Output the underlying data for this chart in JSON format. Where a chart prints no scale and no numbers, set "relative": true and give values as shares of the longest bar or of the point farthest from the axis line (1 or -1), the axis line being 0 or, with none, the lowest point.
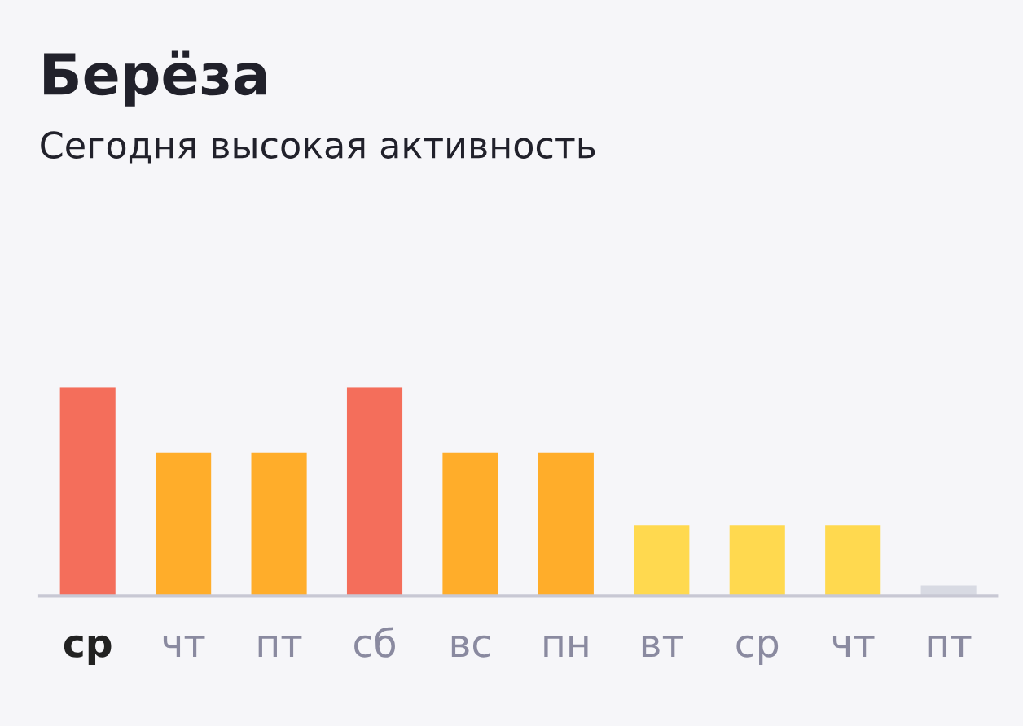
{
  "chart_data": {
    "type": "bar",
    "relative": true,
    "title": "Берёза",
    "subtitle": "Сегодня высокая активность",
    "categories": [
      "ср",
      "чт",
      "пт",
      "сб",
      "вс",
      "пн",
      "вт",
      "ср",
      "чт",
      "пт"
    ],
    "values": [
      1,
      0.69,
      0.69,
      1,
      0.69,
      0.69,
      0.34,
      0.34,
      0.34,
      0.05
    ],
    "colors": [
      "#f46e5b",
      "#ffad2a",
      "#ffad2a",
      "#f46e5b",
      "#ffad2a",
      "#ffad2a",
      "#ffd94f",
      "#ffd94f",
      "#ffd94f",
      "#d8dae3"
    ],
    "grid": false,
    "legend": false
  }
}
